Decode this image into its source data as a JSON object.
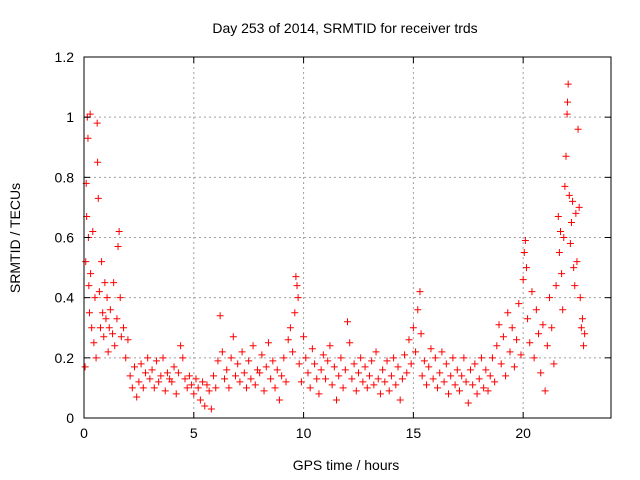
{
  "chart_data": {
    "type": "scatter",
    "title": "Day 253 of 2014, SRMTID for receiver trds",
    "xlabel": "GPS time / hours",
    "ylabel": "SRMTID / TECUs",
    "xlim": [
      0,
      24
    ],
    "ylim": [
      0,
      1.2
    ],
    "xticks": [
      0,
      5,
      10,
      15,
      20
    ],
    "yticks": [
      0,
      0.2,
      0.4,
      0.6,
      0.8,
      1,
      1.2
    ],
    "ytick_labels": [
      "0",
      "0.2",
      "0.4",
      "0.6",
      "0.8",
      "1",
      "1.2"
    ],
    "grid": true,
    "marker": "plus",
    "series": [
      {
        "name": "SRMTID",
        "color": "#ff0000",
        "points": [
          [
            0.05,
            0.17
          ],
          [
            0.08,
            0.52
          ],
          [
            0.1,
            0.78
          ],
          [
            0.12,
            0.67
          ],
          [
            0.15,
            1.0
          ],
          [
            0.18,
            0.93
          ],
          [
            0.2,
            0.6
          ],
          [
            0.22,
            0.44
          ],
          [
            0.25,
            0.35
          ],
          [
            0.28,
            1.01
          ],
          [
            0.3,
            0.48
          ],
          [
            0.35,
            0.3
          ],
          [
            0.4,
            0.62
          ],
          [
            0.45,
            0.25
          ],
          [
            0.5,
            0.4
          ],
          [
            0.55,
            0.2
          ],
          [
            0.6,
            0.98
          ],
          [
            0.62,
            0.85
          ],
          [
            0.65,
            0.73
          ],
          [
            0.7,
            0.42
          ],
          [
            0.75,
            0.3
          ],
          [
            0.8,
            0.52
          ],
          [
            0.85,
            0.35
          ],
          [
            0.9,
            0.27
          ],
          [
            0.95,
            0.45
          ],
          [
            1.0,
            0.33
          ],
          [
            1.05,
            0.4
          ],
          [
            1.1,
            0.22
          ],
          [
            1.15,
            0.3
          ],
          [
            1.2,
            0.36
          ],
          [
            1.3,
            0.28
          ],
          [
            1.35,
            0.45
          ],
          [
            1.4,
            0.24
          ],
          [
            1.5,
            0.33
          ],
          [
            1.55,
            0.57
          ],
          [
            1.6,
            0.62
          ],
          [
            1.65,
            0.4
          ],
          [
            1.7,
            0.27
          ],
          [
            1.8,
            0.3
          ],
          [
            1.9,
            0.2
          ],
          [
            2.0,
            0.26
          ],
          [
            2.1,
            0.14
          ],
          [
            2.2,
            0.1
          ],
          [
            2.3,
            0.17
          ],
          [
            2.4,
            0.07
          ],
          [
            2.5,
            0.12
          ],
          [
            2.6,
            0.18
          ],
          [
            2.7,
            0.1
          ],
          [
            2.8,
            0.15
          ],
          [
            2.9,
            0.2
          ],
          [
            3.0,
            0.13
          ],
          [
            3.1,
            0.16
          ],
          [
            3.2,
            0.1
          ],
          [
            3.3,
            0.19
          ],
          [
            3.4,
            0.12
          ],
          [
            3.5,
            0.14
          ],
          [
            3.6,
            0.2
          ],
          [
            3.7,
            0.09
          ],
          [
            3.8,
            0.15
          ],
          [
            3.9,
            0.13
          ],
          [
            4.0,
            0.12
          ],
          [
            4.1,
            0.17
          ],
          [
            4.2,
            0.08
          ],
          [
            4.3,
            0.15
          ],
          [
            4.4,
            0.24
          ],
          [
            4.5,
            0.2
          ],
          [
            4.6,
            0.13
          ],
          [
            4.7,
            0.1
          ],
          [
            4.8,
            0.14
          ],
          [
            4.9,
            0.11
          ],
          [
            5.0,
            0.08
          ],
          [
            5.1,
            0.13
          ],
          [
            5.2,
            0.1
          ],
          [
            5.3,
            0.06
          ],
          [
            5.4,
            0.12
          ],
          [
            5.5,
            0.04
          ],
          [
            5.6,
            0.11
          ],
          [
            5.7,
            0.09
          ],
          [
            5.8,
            0.03
          ],
          [
            5.9,
            0.14
          ],
          [
            6.0,
            0.1
          ],
          [
            6.1,
            0.19
          ],
          [
            6.2,
            0.34
          ],
          [
            6.3,
            0.22
          ],
          [
            6.4,
            0.13
          ],
          [
            6.5,
            0.16
          ],
          [
            6.6,
            0.1
          ],
          [
            6.7,
            0.2
          ],
          [
            6.8,
            0.27
          ],
          [
            6.9,
            0.14
          ],
          [
            7.0,
            0.18
          ],
          [
            7.1,
            0.12
          ],
          [
            7.2,
            0.22
          ],
          [
            7.3,
            0.15
          ],
          [
            7.4,
            0.1
          ],
          [
            7.5,
            0.19
          ],
          [
            7.6,
            0.13
          ],
          [
            7.7,
            0.24
          ],
          [
            7.8,
            0.11
          ],
          [
            7.9,
            0.16
          ],
          [
            8.0,
            0.15
          ],
          [
            8.1,
            0.21
          ],
          [
            8.2,
            0.09
          ],
          [
            8.3,
            0.17
          ],
          [
            8.4,
            0.25
          ],
          [
            8.5,
            0.13
          ],
          [
            8.6,
            0.19
          ],
          [
            8.7,
            0.1
          ],
          [
            8.8,
            0.16
          ],
          [
            8.9,
            0.06
          ],
          [
            9.0,
            0.14
          ],
          [
            9.1,
            0.2
          ],
          [
            9.2,
            0.12
          ],
          [
            9.3,
            0.26
          ],
          [
            9.4,
            0.3
          ],
          [
            9.5,
            0.22
          ],
          [
            9.6,
            0.35
          ],
          [
            9.65,
            0.47
          ],
          [
            9.7,
            0.44
          ],
          [
            9.75,
            0.4
          ],
          [
            9.8,
            0.18
          ],
          [
            9.9,
            0.12
          ],
          [
            10.0,
            0.27
          ],
          [
            10.1,
            0.2
          ],
          [
            10.2,
            0.15
          ],
          [
            10.3,
            0.1
          ],
          [
            10.4,
            0.23
          ],
          [
            10.5,
            0.18
          ],
          [
            10.6,
            0.13
          ],
          [
            10.7,
            0.08
          ],
          [
            10.8,
            0.16
          ],
          [
            10.9,
            0.21
          ],
          [
            11.0,
            0.13
          ],
          [
            11.1,
            0.19
          ],
          [
            11.2,
            0.24
          ],
          [
            11.3,
            0.11
          ],
          [
            11.4,
            0.17
          ],
          [
            11.5,
            0.06
          ],
          [
            11.6,
            0.14
          ],
          [
            11.7,
            0.2
          ],
          [
            11.8,
            0.1
          ],
          [
            11.9,
            0.16
          ],
          [
            12.0,
            0.32
          ],
          [
            12.1,
            0.25
          ],
          [
            12.2,
            0.13
          ],
          [
            12.3,
            0.18
          ],
          [
            12.4,
            0.09
          ],
          [
            12.5,
            0.15
          ],
          [
            12.6,
            0.2
          ],
          [
            12.7,
            0.12
          ],
          [
            12.8,
            0.17
          ],
          [
            12.9,
            0.1
          ],
          [
            13.0,
            0.14
          ],
          [
            13.1,
            0.19
          ],
          [
            13.2,
            0.11
          ],
          [
            13.3,
            0.22
          ],
          [
            13.4,
            0.13
          ],
          [
            13.5,
            0.08
          ],
          [
            13.6,
            0.16
          ],
          [
            13.7,
            0.12
          ],
          [
            13.8,
            0.19
          ],
          [
            13.9,
            0.09
          ],
          [
            14.0,
            0.14
          ],
          [
            14.1,
            0.2
          ],
          [
            14.2,
            0.11
          ],
          [
            14.3,
            0.17
          ],
          [
            14.4,
            0.06
          ],
          [
            14.5,
            0.13
          ],
          [
            14.6,
            0.21
          ],
          [
            14.7,
            0.15
          ],
          [
            14.8,
            0.26
          ],
          [
            14.9,
            0.18
          ],
          [
            15.0,
            0.3
          ],
          [
            15.1,
            0.22
          ],
          [
            15.2,
            0.36
          ],
          [
            15.3,
            0.42
          ],
          [
            15.35,
            0.28
          ],
          [
            15.4,
            0.14
          ],
          [
            15.5,
            0.19
          ],
          [
            15.6,
            0.11
          ],
          [
            15.7,
            0.17
          ],
          [
            15.8,
            0.23
          ],
          [
            15.9,
            0.13
          ],
          [
            16.0,
            0.2
          ],
          [
            16.1,
            0.1
          ],
          [
            16.2,
            0.15
          ],
          [
            16.3,
            0.22
          ],
          [
            16.4,
            0.12
          ],
          [
            16.5,
            0.18
          ],
          [
            16.6,
            0.08
          ],
          [
            16.7,
            0.14
          ],
          [
            16.8,
            0.2
          ],
          [
            16.9,
            0.11
          ],
          [
            17.0,
            0.16
          ],
          [
            17.1,
            0.09
          ],
          [
            17.2,
            0.14
          ],
          [
            17.3,
            0.2
          ],
          [
            17.4,
            0.12
          ],
          [
            17.5,
            0.05
          ],
          [
            17.6,
            0.16
          ],
          [
            17.7,
            0.11
          ],
          [
            17.8,
            0.18
          ],
          [
            17.9,
            0.08
          ],
          [
            18.0,
            0.13
          ],
          [
            18.1,
            0.2
          ],
          [
            18.2,
            0.1
          ],
          [
            18.3,
            0.16
          ],
          [
            18.4,
            0.09
          ],
          [
            18.5,
            0.14
          ],
          [
            18.6,
            0.2
          ],
          [
            18.7,
            0.12
          ],
          [
            18.8,
            0.24
          ],
          [
            18.9,
            0.31
          ],
          [
            19.0,
            0.18
          ],
          [
            19.1,
            0.27
          ],
          [
            19.2,
            0.14
          ],
          [
            19.3,
            0.35
          ],
          [
            19.4,
            0.22
          ],
          [
            19.5,
            0.3
          ],
          [
            19.6,
            0.17
          ],
          [
            19.7,
            0.26
          ],
          [
            19.8,
            0.38
          ],
          [
            19.9,
            0.21
          ],
          [
            20.0,
            0.46
          ],
          [
            20.05,
            0.55
          ],
          [
            20.1,
            0.59
          ],
          [
            20.15,
            0.5
          ],
          [
            20.2,
            0.33
          ],
          [
            20.3,
            0.25
          ],
          [
            20.4,
            0.42
          ],
          [
            20.5,
            0.2
          ],
          [
            20.6,
            0.36
          ],
          [
            20.7,
            0.28
          ],
          [
            20.8,
            0.15
          ],
          [
            20.9,
            0.31
          ],
          [
            21.0,
            0.09
          ],
          [
            21.1,
            0.24
          ],
          [
            21.2,
            0.4
          ],
          [
            21.3,
            0.3
          ],
          [
            21.4,
            0.18
          ],
          [
            21.5,
            0.44
          ],
          [
            21.6,
            0.67
          ],
          [
            21.65,
            0.55
          ],
          [
            21.7,
            0.62
          ],
          [
            21.75,
            0.48
          ],
          [
            21.8,
            0.36
          ],
          [
            21.85,
            0.6
          ],
          [
            21.9,
            0.77
          ],
          [
            21.95,
            0.87
          ],
          [
            22.0,
            1.01
          ],
          [
            22.02,
            1.05
          ],
          [
            22.05,
            1.11
          ],
          [
            22.1,
            0.74
          ],
          [
            22.15,
            0.58
          ],
          [
            22.2,
            0.65
          ],
          [
            22.25,
            0.72
          ],
          [
            22.3,
            0.5
          ],
          [
            22.35,
            0.44
          ],
          [
            22.4,
            0.68
          ],
          [
            22.45,
            0.52
          ],
          [
            22.5,
            0.96
          ],
          [
            22.55,
            0.7
          ],
          [
            22.6,
            0.4
          ],
          [
            22.65,
            0.3
          ],
          [
            22.7,
            0.33
          ],
          [
            22.75,
            0.24
          ],
          [
            22.8,
            0.28
          ]
        ]
      }
    ]
  }
}
